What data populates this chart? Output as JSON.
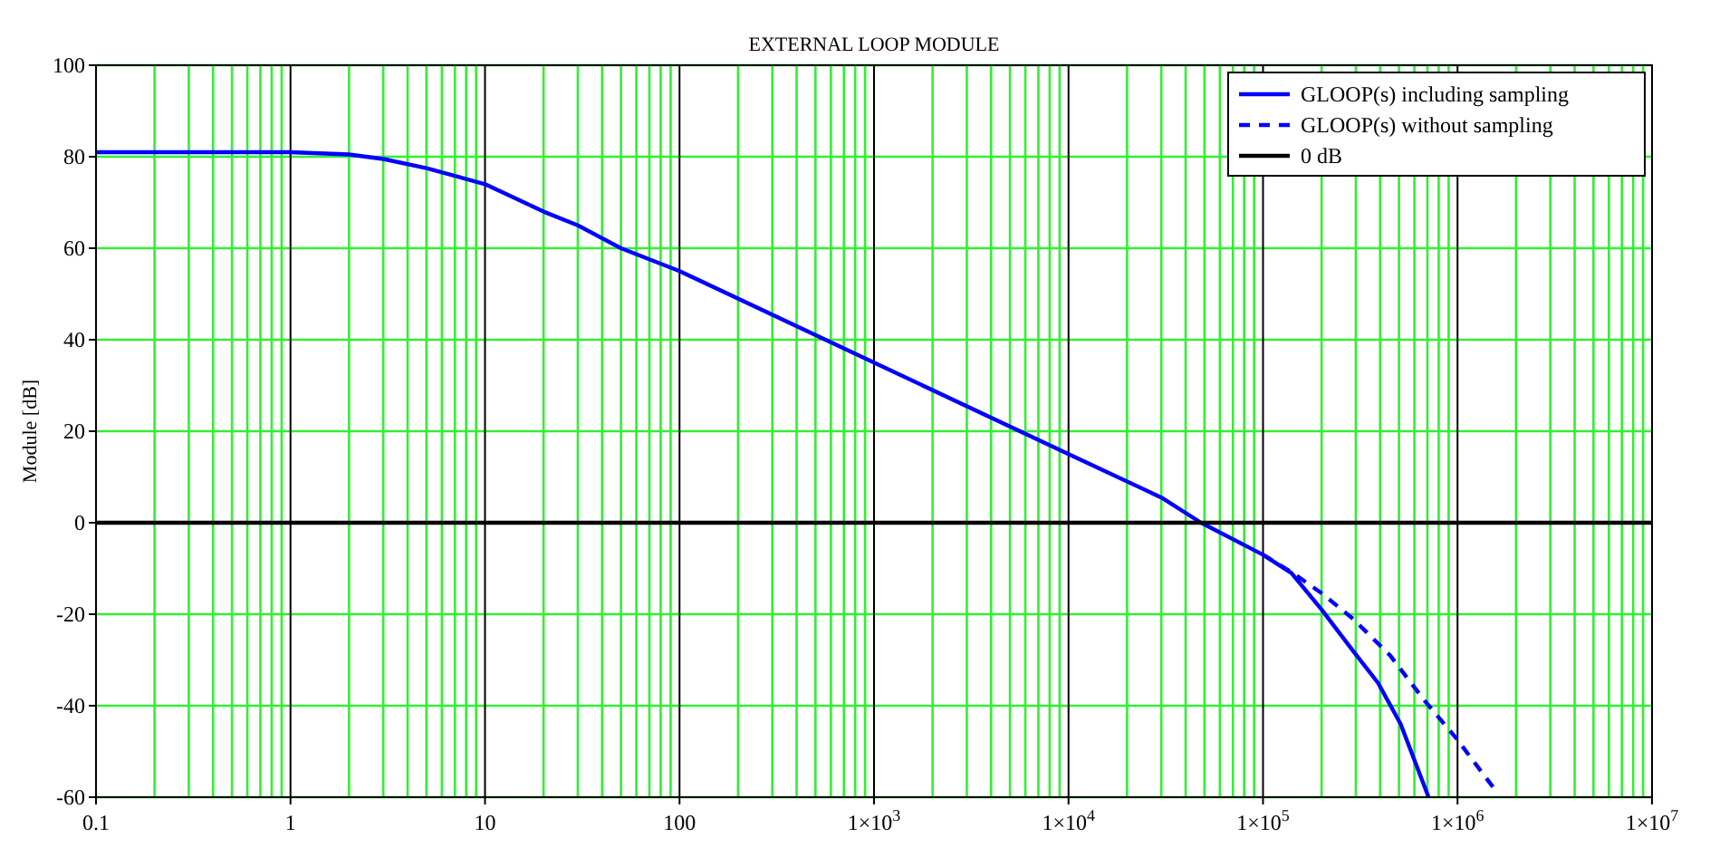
{
  "chart_data": {
    "type": "line",
    "title": "EXTERNAL LOOP MODULE",
    "ylabel": "Module [dB]",
    "log": "x",
    "grid": true,
    "legend": "top right",
    "xlim": [
      0.1,
      10000000
    ],
    "ylim": [
      -60,
      100
    ],
    "xticks": [
      0.1,
      1,
      10,
      100,
      {
        "value": 1000,
        "label": "1×10$^{3}$"
      },
      {
        "value": 10000,
        "label": "1×10$^{4}$"
      },
      {
        "value": 100000,
        "label": "1×10$^{5}$"
      },
      {
        "value": 1000000,
        "label": "1×10$^{6}$"
      },
      {
        "value": 10000000,
        "label": "1×10$^{7}$"
      }
    ],
    "yticks": [
      -60,
      -40,
      -20,
      0,
      20,
      40,
      60,
      80,
      100
    ],
    "series": [
      {
        "name": "GLOOP(s) including sampling",
        "color": "#0000ff",
        "line_style": "solid",
        "x": [
          0.1,
          1,
          2,
          3,
          5,
          10,
          20,
          30,
          50,
          100,
          1000,
          10000,
          30000,
          48000,
          100000,
          140000,
          200000,
          290000,
          390000,
          510000,
          710000
        ],
        "values": [
          81,
          81,
          80.5,
          79.5,
          77.5,
          74,
          68,
          65,
          60,
          55,
          35,
          15,
          5.5,
          0,
          -7,
          -11,
          -19,
          -28,
          -35,
          -44,
          -60
        ]
      },
      {
        "name": "GLOOP(s) without sampling",
        "color": "#0000ff",
        "line_style": "dashed",
        "x": [
          100000,
          140000,
          200000,
          290000,
          450000,
          680000,
          980000,
          1600000
        ],
        "values": [
          -7,
          -10.8,
          -15.4,
          -21,
          -29,
          -39,
          -47,
          -59
        ]
      },
      {
        "name": "0 dB",
        "color": "#000000",
        "line_style": "solid",
        "x": [
          0.1,
          10000000
        ],
        "values": [
          0,
          0
        ]
      }
    ]
  }
}
